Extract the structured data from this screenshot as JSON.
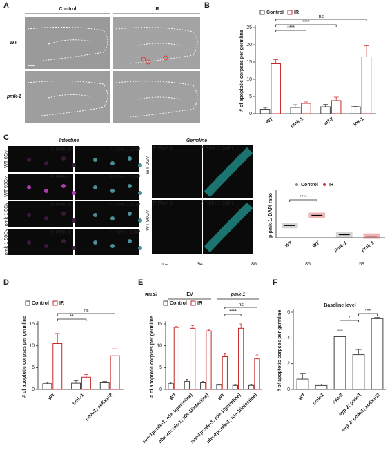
{
  "panel_labels": [
    "A",
    "B",
    "C",
    "D",
    "E",
    "F"
  ],
  "panel_a": {
    "columns": [
      "Control",
      "IR"
    ],
    "rows": [
      "WT",
      "pmk-1"
    ]
  },
  "panel_c": {
    "intestine_title": "Intestine",
    "germline_title": "Germline",
    "intestine_rows": [
      "WT 0Gy",
      "WT 90Gy",
      "pmk-1 0Gy",
      "pmk-1 90Gy"
    ],
    "germline_rows": [
      "WT 0Gy",
      "WT 90Gy"
    ],
    "channels": [
      "P-PMK-1",
      "P-PMK-1 DAPI"
    ]
  },
  "chart_data": [
    {
      "type": "bar",
      "ylabel": "# of apoptotic corpses per germline",
      "categories": [
        "WT",
        "pmk-1",
        "atf-7",
        "jnk-1"
      ],
      "series": [
        {
          "name": "Control",
          "color": "#444444",
          "values": [
            1.3,
            1.8,
            2.0,
            2.0
          ],
          "errors": [
            0.5,
            0.8,
            0.7,
            0.1
          ]
        },
        {
          "name": "IR",
          "color": "#c62828",
          "values": [
            14.5,
            3.0,
            3.8,
            16.5
          ],
          "errors": [
            1.2,
            0.4,
            1.0,
            3.2
          ]
        }
      ],
      "ylim": [
        0,
        25
      ],
      "yticks": [
        0,
        5,
        10,
        15,
        20,
        25
      ],
      "annotations": [
        {
          "label": "ns",
          "series": 1,
          "from": 0,
          "to": 3
        },
        {
          "label": "****",
          "series": 1,
          "from": 0,
          "to": 2
        },
        {
          "label": "****",
          "series": 1,
          "from": 0,
          "to": 1
        }
      ]
    },
    {
      "type": "dot",
      "ylabel": "p-pmk-1/ DAPI ratio",
      "categories": [
        "WT",
        "WT",
        "pmk-1",
        "pmk-1"
      ],
      "series": [
        {
          "name": "Control",
          "color": "#888888",
          "values": [
            0.6,
            null,
            0.15,
            null
          ]
        },
        {
          "name": "IR",
          "color": "#d32f2f",
          "values": [
            null,
            1.1,
            null,
            0.08
          ]
        }
      ],
      "ylim": [
        0,
        2.2
      ],
      "n_label": "n =",
      "n": [
        94,
        86,
        85,
        59
      ],
      "annotations": [
        {
          "label": "****",
          "from": 0,
          "to": 1
        }
      ]
    },
    {
      "type": "bar",
      "ylabel": "# of apoptotic corpses per germline",
      "categories": [
        "WT",
        "pmk-1",
        "pmk-1; acEx102"
      ],
      "series": [
        {
          "name": "Control",
          "color": "#444444",
          "values": [
            1.3,
            1.4,
            1.5
          ],
          "errors": [
            0.3,
            0.6,
            0.3
          ]
        },
        {
          "name": "IR",
          "color": "#c62828",
          "values": [
            10.5,
            2.8,
            7.7
          ],
          "errors": [
            2.3,
            0.6,
            1.6
          ]
        }
      ],
      "ylim": [
        0,
        15
      ],
      "yticks": [
        0,
        5,
        10,
        15
      ],
      "annotations": [
        {
          "label": "ns",
          "series": 1,
          "from": 0,
          "to": 2
        },
        {
          "label": "**",
          "series": 1,
          "from": 0,
          "to": 1
        }
      ]
    },
    {
      "type": "bar",
      "ylabel": "# of apoptotic corpses per germline",
      "group_title": "RNAi",
      "groups": [
        {
          "label": "EV",
          "from": 0,
          "to": 2
        },
        {
          "label": "pmk-1",
          "from": 3,
          "to": 5
        }
      ],
      "categories": [
        "WT",
        "sun-1p::rde-1; rde-1(germline)",
        "nhx-2p::rde-1; rde-1(intestine)",
        "WT",
        "sun-1p::rde-1; rde-1(germline)",
        "nhx-2p::rde-1; rde-1(intestine)"
      ],
      "series": [
        {
          "name": "Control",
          "color": "#444444",
          "values": [
            1.3,
            1.8,
            1.5,
            1.0,
            0.9,
            0.9
          ],
          "errors": [
            0.3,
            0.5,
            0.3,
            0.2,
            0.2,
            0.2
          ]
        },
        {
          "name": "IR",
          "color": "#c62828",
          "values": [
            14.2,
            14.0,
            13.4,
            7.5,
            14.0,
            7.0
          ],
          "errors": [
            0.2,
            0.6,
            0.2,
            0.6,
            1.0,
            0.9
          ]
        }
      ],
      "ylim": [
        0,
        15
      ],
      "yticks": [
        0,
        5,
        10,
        15
      ],
      "annotations": [
        {
          "label": "ns",
          "series": 1,
          "from": 3,
          "to": 5
        },
        {
          "label": "****",
          "series": 1,
          "from": 3,
          "to": 4
        }
      ]
    },
    {
      "type": "bar",
      "title": "Baseline level",
      "ylabel": "# of apoptotic corpses per germline",
      "categories": [
        "WT",
        "pmk-1",
        "syp-2",
        "syp-2; pmk-1",
        "syp-2; pmk-1; acEx102"
      ],
      "values": [
        0.8,
        0.3,
        4.1,
        2.7,
        5.5
      ],
      "errors": [
        0.4,
        0.1,
        0.5,
        0.4,
        0.1
      ],
      "color": "#444444",
      "ylim": [
        0,
        6
      ],
      "yticks": [
        0,
        2,
        4,
        6
      ],
      "annotations": [
        {
          "label": "*",
          "from": 2,
          "to": 3
        },
        {
          "label": "***",
          "from": 3,
          "to": 4
        }
      ]
    }
  ]
}
